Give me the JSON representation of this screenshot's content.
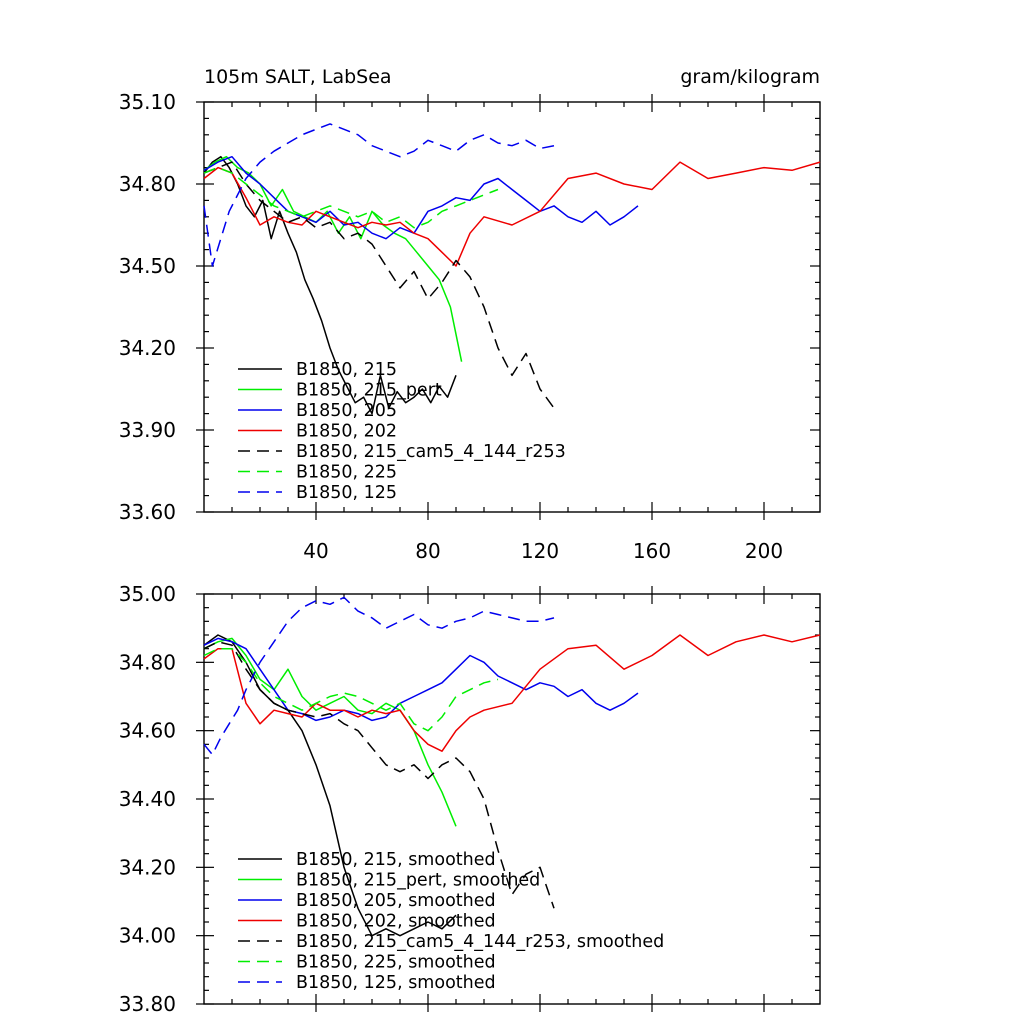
{
  "chart_data": [
    {
      "type": "line",
      "title": "105m SALT, LabSea",
      "units": "gram/kilogram",
      "xlim": [
        0,
        220
      ],
      "ylim": [
        33.6,
        35.1
      ],
      "x_tick_values": [
        40,
        80,
        120,
        160,
        200
      ],
      "x_tick_labels": [
        "40",
        "80",
        "120",
        "160",
        "200"
      ],
      "y_tick_values": [
        33.6,
        33.9,
        34.2,
        34.5,
        34.8,
        35.1
      ],
      "y_tick_labels": [
        "33.60",
        "33.90",
        "34.20",
        "34.50",
        "34.80",
        "35.10"
      ],
      "legend_position": "bottom-left",
      "series": [
        {
          "name": "B1850, 215",
          "color": "#000000",
          "dash": "solid",
          "x": [
            0,
            3,
            6,
            9,
            12,
            15,
            18,
            21,
            24,
            27,
            30,
            33,
            36,
            39,
            42,
            45,
            48,
            51,
            54,
            57,
            60,
            63,
            66,
            69,
            72,
            75,
            78,
            81,
            84,
            87,
            90
          ],
          "values": [
            34.84,
            34.88,
            34.9,
            34.86,
            34.8,
            34.72,
            34.68,
            34.74,
            34.6,
            34.7,
            34.62,
            34.55,
            34.45,
            34.38,
            34.3,
            34.2,
            34.12,
            34.06,
            34.0,
            34.02,
            33.96,
            34.1,
            33.98,
            34.04,
            34.0,
            34.02,
            34.05,
            34.0,
            34.06,
            34.02,
            34.1
          ]
        },
        {
          "name": "B1850, 215_pert",
          "color": "#00ee00",
          "dash": "solid",
          "x": [
            0,
            4,
            8,
            12,
            16,
            20,
            24,
            28,
            32,
            36,
            40,
            44,
            48,
            52,
            56,
            60,
            64,
            68,
            72,
            76,
            80,
            84,
            88,
            90,
            92
          ],
          "values": [
            34.85,
            34.88,
            34.9,
            34.86,
            34.84,
            34.8,
            34.72,
            34.78,
            34.7,
            34.68,
            34.66,
            34.7,
            34.62,
            34.68,
            34.6,
            34.7,
            34.65,
            34.62,
            34.6,
            34.55,
            34.5,
            34.45,
            34.35,
            34.25,
            34.15
          ]
        },
        {
          "name": "B1850, 205",
          "color": "#0000ee",
          "dash": "solid",
          "x": [
            0,
            5,
            10,
            15,
            20,
            25,
            30,
            35,
            40,
            45,
            50,
            55,
            60,
            65,
            70,
            75,
            80,
            85,
            90,
            95,
            100,
            105,
            110,
            115,
            120,
            125,
            130,
            135,
            140,
            145,
            150,
            155
          ],
          "values": [
            34.85,
            34.88,
            34.9,
            34.84,
            34.8,
            34.75,
            34.7,
            34.68,
            34.66,
            34.7,
            34.65,
            34.66,
            34.62,
            34.6,
            34.64,
            34.62,
            34.7,
            34.72,
            34.75,
            34.74,
            34.8,
            34.82,
            34.78,
            34.74,
            34.7,
            34.72,
            34.68,
            34.66,
            34.7,
            34.65,
            34.68,
            34.72
          ]
        },
        {
          "name": "B1850, 202",
          "color": "#ee0000",
          "dash": "solid",
          "x": [
            0,
            5,
            10,
            15,
            20,
            25,
            30,
            35,
            40,
            45,
            50,
            55,
            60,
            65,
            70,
            75,
            80,
            85,
            90,
            95,
            100,
            110,
            120,
            130,
            140,
            150,
            160,
            170,
            180,
            190,
            200,
            210,
            220
          ],
          "values": [
            34.82,
            34.86,
            34.84,
            34.75,
            34.65,
            34.68,
            34.66,
            34.65,
            34.7,
            34.68,
            34.66,
            34.64,
            34.66,
            34.65,
            34.66,
            34.62,
            34.6,
            34.55,
            34.5,
            34.62,
            34.68,
            34.65,
            34.7,
            34.82,
            34.84,
            34.8,
            34.78,
            34.88,
            34.82,
            34.84,
            34.86,
            34.85,
            34.88
          ]
        },
        {
          "name": "B1850, 215_cam5_4_144_r253",
          "color": "#000000",
          "dash": "dashed",
          "x": [
            0,
            5,
            10,
            15,
            20,
            25,
            30,
            35,
            40,
            45,
            50,
            55,
            60,
            65,
            70,
            75,
            80,
            85,
            90,
            95,
            100,
            105,
            110,
            115,
            120,
            125
          ],
          "values": [
            34.84,
            34.86,
            34.88,
            34.8,
            34.74,
            34.7,
            34.66,
            34.68,
            34.64,
            34.66,
            34.6,
            34.62,
            34.58,
            34.5,
            34.42,
            34.48,
            34.38,
            34.44,
            34.52,
            34.46,
            34.35,
            34.2,
            34.1,
            34.18,
            34.05,
            33.98
          ]
        },
        {
          "name": "B1850, 225",
          "color": "#00ee00",
          "dash": "dashed",
          "x": [
            0,
            5,
            10,
            15,
            20,
            25,
            30,
            35,
            40,
            45,
            50,
            55,
            60,
            65,
            70,
            75,
            80,
            85,
            90,
            95,
            100,
            105
          ],
          "values": [
            34.84,
            34.86,
            34.84,
            34.8,
            34.76,
            34.72,
            34.7,
            34.68,
            34.7,
            34.72,
            34.7,
            34.68,
            34.7,
            34.66,
            34.68,
            34.64,
            34.66,
            34.7,
            34.72,
            34.74,
            34.76,
            34.78
          ]
        },
        {
          "name": "B1850, 125",
          "color": "#0000ee",
          "dash": "dashed",
          "x": [
            0,
            3,
            6,
            9,
            12,
            15,
            20,
            25,
            30,
            35,
            40,
            45,
            50,
            55,
            60,
            65,
            70,
            75,
            80,
            85,
            90,
            95,
            100,
            105,
            110,
            115,
            120,
            125
          ],
          "values": [
            34.72,
            34.5,
            34.6,
            34.7,
            34.76,
            34.82,
            34.88,
            34.92,
            34.95,
            34.98,
            35.0,
            35.02,
            35.0,
            34.98,
            34.94,
            34.92,
            34.9,
            34.92,
            34.96,
            34.94,
            34.92,
            34.96,
            34.98,
            34.95,
            34.94,
            34.96,
            34.93,
            34.94
          ]
        }
      ]
    },
    {
      "type": "line",
      "title": "",
      "xlim": [
        0,
        220
      ],
      "ylim": [
        33.8,
        35.0
      ],
      "x_tick_values": [
        40,
        80,
        120,
        160,
        200
      ],
      "x_tick_labels": [],
      "y_tick_values": [
        33.8,
        34.0,
        34.2,
        34.4,
        34.6,
        34.8,
        35.0
      ],
      "y_tick_labels": [
        "33.80",
        "34.00",
        "34.20",
        "34.40",
        "34.60",
        "34.80",
        "35.00"
      ],
      "legend_position": "bottom-left",
      "series": [
        {
          "name": "B1850, 215, smoothed",
          "color": "#000000",
          "dash": "solid",
          "x": [
            0,
            5,
            10,
            15,
            20,
            25,
            30,
            35,
            40,
            45,
            50,
            55,
            60,
            65,
            70,
            75,
            80,
            85,
            90
          ],
          "values": [
            34.85,
            34.88,
            34.86,
            34.8,
            34.72,
            34.68,
            34.66,
            34.6,
            34.5,
            34.38,
            34.2,
            34.08,
            34.0,
            34.02,
            34.0,
            34.02,
            34.04,
            34.02,
            34.06
          ]
        },
        {
          "name": "B1850, 215_pert, smoothed",
          "color": "#00ee00",
          "dash": "solid",
          "x": [
            0,
            5,
            10,
            15,
            20,
            25,
            30,
            35,
            40,
            45,
            50,
            55,
            60,
            65,
            70,
            75,
            80,
            85,
            90
          ],
          "values": [
            34.84,
            34.86,
            34.87,
            34.82,
            34.75,
            34.72,
            34.78,
            34.7,
            34.66,
            34.68,
            34.7,
            34.66,
            34.65,
            34.68,
            34.66,
            34.6,
            34.5,
            34.42,
            34.32
          ]
        },
        {
          "name": "B1850, 205, smoothed",
          "color": "#0000ee",
          "dash": "solid",
          "x": [
            0,
            5,
            10,
            15,
            20,
            25,
            30,
            35,
            40,
            45,
            50,
            55,
            60,
            65,
            70,
            75,
            80,
            85,
            90,
            95,
            100,
            105,
            110,
            115,
            120,
            125,
            130,
            135,
            140,
            145,
            150,
            155
          ],
          "values": [
            34.85,
            34.87,
            34.86,
            34.84,
            34.78,
            34.72,
            34.66,
            34.65,
            34.63,
            34.64,
            34.66,
            34.65,
            34.63,
            34.64,
            34.68,
            34.7,
            34.72,
            34.74,
            34.78,
            34.82,
            34.8,
            34.76,
            34.74,
            34.72,
            34.74,
            34.73,
            34.7,
            34.72,
            34.68,
            34.66,
            34.68,
            34.71
          ]
        },
        {
          "name": "B1850, 202, smoothed",
          "color": "#ee0000",
          "dash": "solid",
          "x": [
            0,
            5,
            10,
            15,
            20,
            25,
            30,
            35,
            40,
            45,
            50,
            55,
            60,
            65,
            70,
            75,
            80,
            85,
            90,
            95,
            100,
            110,
            120,
            130,
            140,
            150,
            160,
            170,
            180,
            190,
            200,
            210,
            220
          ],
          "values": [
            34.81,
            34.84,
            34.84,
            34.68,
            34.62,
            34.66,
            34.65,
            34.64,
            34.68,
            34.66,
            34.66,
            34.64,
            34.66,
            34.65,
            34.66,
            34.6,
            34.56,
            34.54,
            34.6,
            34.64,
            34.66,
            34.68,
            34.78,
            34.84,
            34.85,
            34.78,
            34.82,
            34.88,
            34.82,
            34.86,
            34.88,
            34.86,
            34.88
          ]
        },
        {
          "name": "B1850, 215_cam5_4_144_r253, smoothed",
          "color": "#000000",
          "dash": "dashed",
          "x": [
            0,
            5,
            10,
            15,
            20,
            25,
            30,
            35,
            40,
            45,
            50,
            55,
            60,
            65,
            70,
            75,
            80,
            85,
            90,
            95,
            100,
            105,
            110,
            115,
            120,
            125
          ],
          "values": [
            34.84,
            34.86,
            34.85,
            34.78,
            34.72,
            34.68,
            34.66,
            34.65,
            34.64,
            34.65,
            34.62,
            34.6,
            34.55,
            34.5,
            34.48,
            34.5,
            34.46,
            34.5,
            34.52,
            34.48,
            34.4,
            34.25,
            34.12,
            34.18,
            34.2,
            34.08
          ]
        },
        {
          "name": "B1850, 225, smoothed",
          "color": "#00ee00",
          "dash": "dashed",
          "x": [
            0,
            5,
            10,
            15,
            20,
            25,
            30,
            35,
            40,
            45,
            50,
            55,
            60,
            65,
            70,
            75,
            80,
            85,
            90,
            95,
            100,
            105
          ],
          "values": [
            34.82,
            34.84,
            34.84,
            34.8,
            34.74,
            34.7,
            34.68,
            34.66,
            34.68,
            34.7,
            34.71,
            34.7,
            34.68,
            34.66,
            34.68,
            34.62,
            34.6,
            34.64,
            34.7,
            34.72,
            34.74,
            34.75
          ]
        },
        {
          "name": "B1850, 125, smoothed",
          "color": "#0000ee",
          "dash": "dashed",
          "x": [
            0,
            3,
            6,
            9,
            12,
            15,
            20,
            25,
            30,
            35,
            40,
            45,
            50,
            55,
            60,
            65,
            70,
            75,
            80,
            85,
            90,
            95,
            100,
            105,
            110,
            115,
            120,
            125
          ],
          "values": [
            34.56,
            34.53,
            34.58,
            34.62,
            34.66,
            34.72,
            34.8,
            34.86,
            34.92,
            34.96,
            34.98,
            34.97,
            34.99,
            34.95,
            34.93,
            34.9,
            34.92,
            34.94,
            34.91,
            34.9,
            34.92,
            34.93,
            34.95,
            34.94,
            34.93,
            34.92,
            34.92,
            34.93
          ]
        }
      ]
    }
  ]
}
